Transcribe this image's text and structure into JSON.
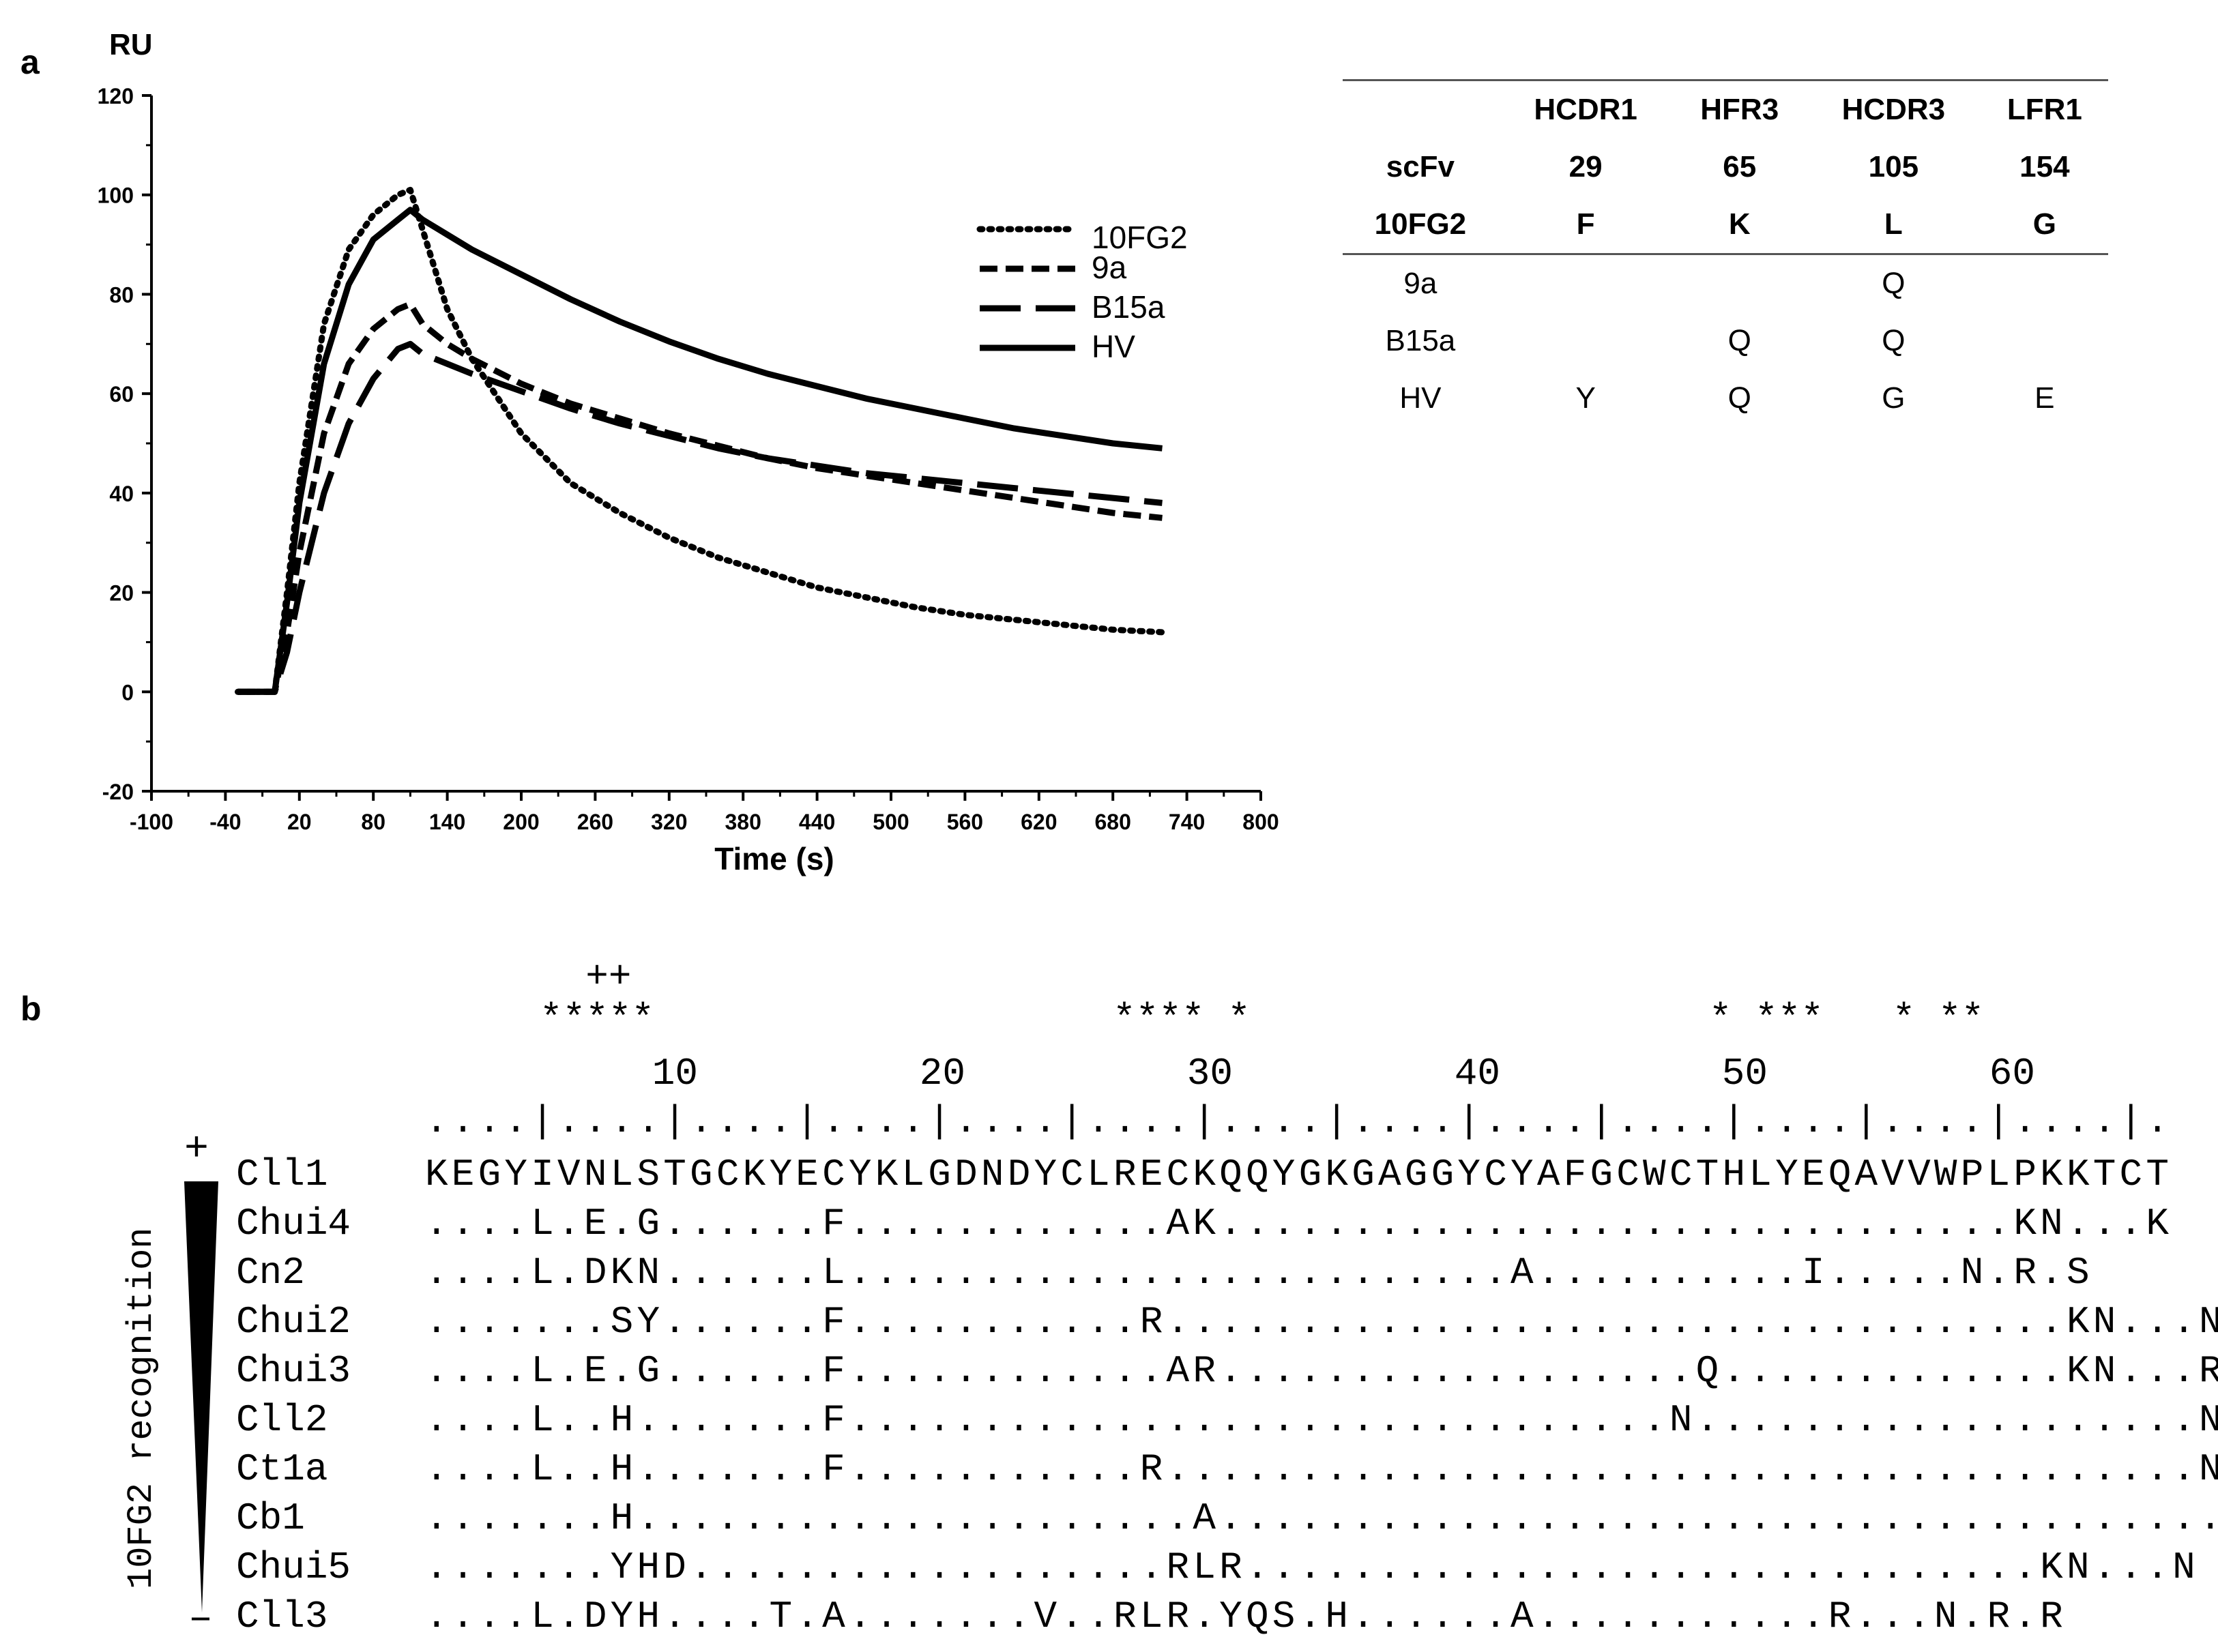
{
  "panels": {
    "a": "a",
    "b": "b"
  },
  "chart_data": {
    "type": "line",
    "ylabel": "RU",
    "xlabel": "Time (s)",
    "xlim": [
      -100,
      800
    ],
    "ylim": [
      -20,
      120
    ],
    "xticks": [
      -100,
      -40,
      20,
      80,
      140,
      200,
      260,
      320,
      380,
      440,
      500,
      560,
      620,
      680,
      740,
      800
    ],
    "yticks": [
      -20,
      0,
      20,
      40,
      60,
      80,
      100,
      120
    ],
    "legend_position": "right",
    "series": [
      {
        "name": "10FG2",
        "style": "dotted",
        "x": [
          -30,
          -10,
          0,
          10,
          20,
          40,
          60,
          80,
          100,
          110,
          120,
          140,
          160,
          200,
          240,
          280,
          320,
          360,
          400,
          440,
          480,
          520,
          560,
          600,
          640,
          680,
          720
        ],
        "y": [
          0,
          0,
          0,
          20,
          42,
          74,
          89,
          96,
          100,
          101,
          93,
          77,
          67,
          52,
          42,
          36,
          31,
          27,
          24,
          21,
          19,
          17,
          15.5,
          14.5,
          13.5,
          12.5,
          12
        ]
      },
      {
        "name": "9a",
        "style": "dashed",
        "x": [
          -30,
          -10,
          0,
          10,
          20,
          40,
          60,
          80,
          100,
          110,
          120,
          140,
          160,
          200,
          240,
          280,
          320,
          360,
          400,
          440,
          480,
          520,
          560,
          600,
          640,
          680,
          720
        ],
        "y": [
          0,
          0,
          0,
          12,
          28,
          52,
          66,
          73,
          77,
          78,
          74,
          70,
          67,
          62,
          58,
          55,
          52,
          49.5,
          47,
          45,
          43.5,
          42,
          40.5,
          39,
          37.5,
          36,
          35
        ]
      },
      {
        "name": "B15a",
        "style": "longdash",
        "x": [
          -30,
          -10,
          0,
          10,
          20,
          40,
          60,
          80,
          100,
          110,
          120,
          140,
          160,
          200,
          240,
          280,
          320,
          360,
          400,
          440,
          480,
          520,
          560,
          600,
          640,
          680,
          720
        ],
        "y": [
          0,
          0,
          0,
          8,
          20,
          40,
          54,
          63,
          69,
          70,
          68,
          66,
          64,
          60.5,
          57,
          54,
          51.5,
          49,
          47,
          45.5,
          44,
          43,
          42,
          41,
          40,
          39,
          38
        ]
      },
      {
        "name": "HV",
        "style": "solid",
        "x": [
          -30,
          -10,
          0,
          10,
          20,
          40,
          60,
          80,
          100,
          110,
          120,
          140,
          160,
          200,
          240,
          280,
          320,
          360,
          400,
          440,
          480,
          520,
          560,
          600,
          640,
          680,
          720
        ],
        "y": [
          0,
          0,
          0,
          18,
          38,
          66,
          82,
          91,
          95,
          97,
          95,
          92,
          89,
          84,
          79,
          74.5,
          70.5,
          67,
          64,
          61.5,
          59,
          57,
          55,
          53,
          51.5,
          50,
          49
        ]
      }
    ]
  },
  "mutation_table": {
    "header_rows": [
      [
        "",
        "HCDR1",
        "HFR3",
        "HCDR3",
        "LFR1"
      ],
      [
        "scFv",
        "29",
        "65",
        "105",
        "154"
      ],
      [
        "10FG2",
        "F",
        "K",
        "L",
        "G"
      ]
    ],
    "rows": [
      [
        "9a",
        "",
        "",
        "Q",
        ""
      ],
      [
        "B15a",
        "",
        "Q",
        "Q",
        ""
      ],
      [
        "HV",
        "Y",
        "Q",
        "G",
        "E"
      ]
    ]
  },
  "alignment": {
    "plus_line": "       ++",
    "stars_line": "     *****                    **** *                    * ***   * **",
    "numbers": [
      "10",
      "20",
      "30",
      "40",
      "50",
      "60"
    ],
    "ruler": "....|....|....|....|....|....|....|....|....|....|....|....|....|.",
    "recognition_label": "10FG2 recognition",
    "recognition_top": "+",
    "recognition_bottom": "–",
    "sequences": [
      {
        "name": "Cll1",
        "seq": "KEGYIVNLSTGCKYECYKLGDNDYCLRECKQQYGKGAGGYCYAFGCWCTHLYEQAVVWPLPKKTCT"
      },
      {
        "name": "Chui4",
        "seq": "....L.E.G......F............AK..............................KN...K"
      },
      {
        "name": "Cn2",
        "seq": "....L.DKN......L.........................A..........I.....N.R.S"
      },
      {
        "name": "Chui2",
        "seq": ".......SY......F...........R..................................KN...N"
      },
      {
        "name": "Chui3",
        "seq": "....L.E.G......F............AR..................Q.............KN...R"
      },
      {
        "name": "Cll2",
        "seq": "....L..H.......F...............................N...................N"
      },
      {
        "name": "Ct1a",
        "seq": "....L..H.......F...........R.......................................N"
      },
      {
        "name": "Cb1",
        "seq": ".......H.....................A.......................................N"
      },
      {
        "name": "Chui5",
        "seq": ".......YHD..................RLR..............................KN...N"
      },
      {
        "name": "Cll3",
        "seq": "....L.DYH....T.A.......V..RLR.YQS.H......A...........R...N.R.R"
      }
    ]
  }
}
